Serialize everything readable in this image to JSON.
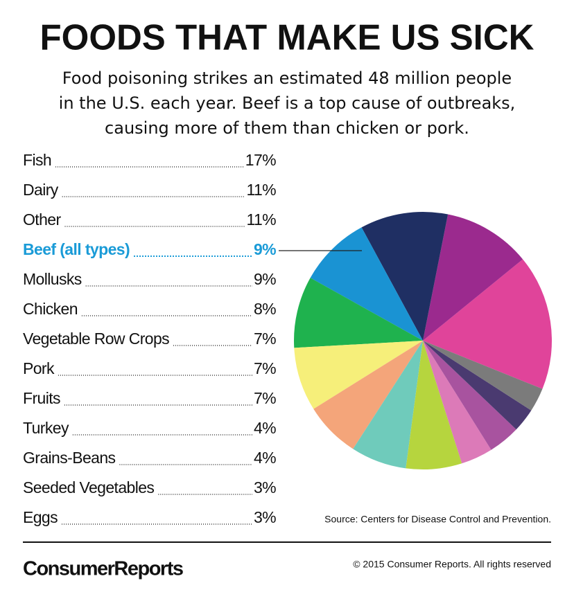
{
  "chart_data": {
    "type": "pie",
    "title": "FOODS THAT MAKE US SICK",
    "subtitle": [
      "Food poisoning strikes an estimated 48 million people",
      "in the U.S. each year. Beef is a top  cause of outbreaks,",
      "causing more of them than chicken or pork."
    ],
    "categories": [
      "Fish",
      "Dairy",
      "Other",
      "Beef (all types)",
      "Mollusks",
      "Chicken",
      "Vegetable Row Crops",
      "Pork",
      "Fruits",
      "Turkey",
      "Grains-Beans",
      "Seeded Vegetables",
      "Eggs"
    ],
    "values": [
      17,
      11,
      11,
      9,
      9,
      8,
      7,
      7,
      7,
      4,
      4,
      3,
      3
    ],
    "value_labels": [
      "17%",
      "11%",
      "11%",
      "9%",
      "9%",
      "8%",
      "7%",
      "7%",
      "7%",
      "4%",
      "4%",
      "3%",
      "3%"
    ],
    "colors": [
      "#e0449a",
      "#9b2a8e",
      "#1f2f63",
      "#1a93d3",
      "#1fb24e",
      "#f6ef7a",
      "#f4a57a",
      "#6fcbbb",
      "#b6d53e",
      "#dc7ab8",
      "#a8539f",
      "#4a3a70",
      "#7b7b7b"
    ],
    "highlight_index": 3,
    "highlight_color": "#1a9bd7",
    "source": "Source: Centers for Disease Control and Prevention.",
    "brand": "ConsumerReports",
    "copyright": "© 2015 Consumer Reports. All rights reserved"
  }
}
